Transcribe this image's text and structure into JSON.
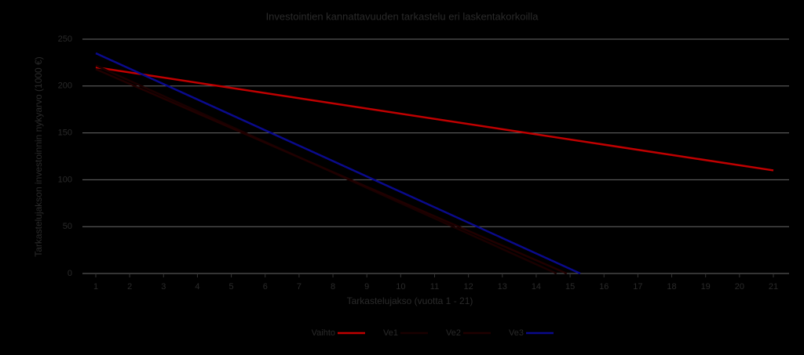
{
  "chart_data": {
    "type": "line",
    "title": "Investointien kannattavuuden tarkastelu eri laskentakorkoilla",
    "xlabel": "Tarkastelujakso (vuotta 1 - 21)",
    "ylabel": "Tarkastelujakson investoinnin nykyarvo (1000 €)",
    "xlim": [
      1,
      21
    ],
    "xticks": [
      1,
      2,
      3,
      4,
      5,
      6,
      7,
      8,
      9,
      10,
      11,
      12,
      13,
      14,
      15,
      16,
      17,
      18,
      19,
      20,
      21
    ],
    "ylim": [
      0,
      250
    ],
    "yticks": [
      0,
      50,
      100,
      150,
      200,
      250
    ],
    "grid": true,
    "series": [
      {
        "name": "Vaihto",
        "color": "#c00000",
        "x": [
          1,
          21
        ],
        "values": [
          220,
          110
        ]
      },
      {
        "name": "Ve1",
        "color": "#1a0000",
        "x": [
          1,
          14.6
        ],
        "values": [
          222,
          0
        ]
      },
      {
        "name": "Ve2",
        "color": "#200000",
        "x": [
          1,
          14.9
        ],
        "values": [
          218,
          0
        ]
      },
      {
        "name": "Ve3",
        "color": "#0a0a8c",
        "x": [
          1,
          15.3
        ],
        "values": [
          235,
          0
        ]
      }
    ]
  }
}
